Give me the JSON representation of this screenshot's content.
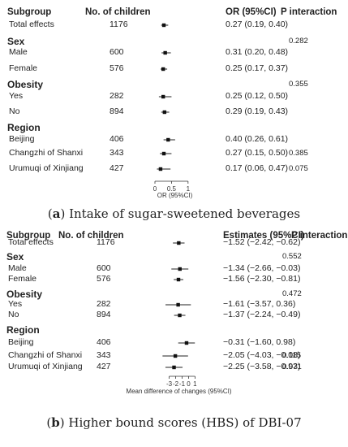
{
  "chart_data": [
    {
      "type": "forest",
      "caption_letter": "a",
      "caption_text": "Intake of sugar-sweetened beverages",
      "headers": {
        "subgroup": "Subgroup",
        "n": "No. of children",
        "est": "OR (95%CI)",
        "p": "P interaction"
      },
      "xlabel": "OR (95%CI)",
      "ticks": [
        {
          "v": 0,
          "label": "0"
        },
        {
          "v": 0.5,
          "label": "0.5"
        },
        {
          "v": 1,
          "label": "1"
        }
      ],
      "xlim": [
        0,
        1.2
      ],
      "rows": [
        {
          "kind": "data",
          "label": "Total effects",
          "n": "1176",
          "est": 0.27,
          "lo": 0.19,
          "hi": 0.4,
          "text": "0.27 (0.19, 0.40)",
          "p": ""
        },
        {
          "kind": "section",
          "label": "Sex",
          "p": "0.282"
        },
        {
          "kind": "data",
          "label": "Male",
          "n": "600",
          "est": 0.31,
          "lo": 0.2,
          "hi": 0.48,
          "text": "0.31 (0.20, 0.48)",
          "p": ""
        },
        {
          "kind": "data",
          "label": "Female",
          "n": "576",
          "est": 0.25,
          "lo": 0.17,
          "hi": 0.37,
          "text": "0.25 (0.17, 0.37)",
          "p": ""
        },
        {
          "kind": "section",
          "label": "Obesity",
          "p": "0.355"
        },
        {
          "kind": "data",
          "label": "Yes",
          "n": "282",
          "est": 0.25,
          "lo": 0.12,
          "hi": 0.5,
          "text": "0.25 (0.12, 0.50)",
          "p": ""
        },
        {
          "kind": "data",
          "label": "No",
          "n": "894",
          "est": 0.29,
          "lo": 0.19,
          "hi": 0.43,
          "text": "0.29 (0.19, 0.43)",
          "p": ""
        },
        {
          "kind": "section",
          "label": "Region",
          "p": ""
        },
        {
          "kind": "data",
          "label": "Beijing",
          "n": "406",
          "est": 0.4,
          "lo": 0.26,
          "hi": 0.61,
          "text": "0.40 (0.26, 0.61)",
          "p": ""
        },
        {
          "kind": "data",
          "label": "Changzhi of Shanxi",
          "n": "343",
          "est": 0.27,
          "lo": 0.15,
          "hi": 0.5,
          "text": "0.27 (0.15, 0.50)",
          "p": "0.385"
        },
        {
          "kind": "data",
          "label": "Urumuqi of Xinjiang",
          "n": "427",
          "est": 0.17,
          "lo": 0.06,
          "hi": 0.47,
          "text": "0.17 (0.06, 0.47)",
          "p": "0.075"
        }
      ]
    },
    {
      "type": "forest",
      "caption_letter": "b",
      "caption_text": "Higher bound scores (HBS) of DBI-07",
      "headers": {
        "subgroup": "Subgroup",
        "n": "No. of children",
        "est": "Estimates (95%CI)",
        "p": "P interaction"
      },
      "xlabel": "Mean difference of changes (95%CI)",
      "ticks": [
        {
          "v": -3,
          "label": "-3"
        },
        {
          "v": -2,
          "label": "-2"
        },
        {
          "v": -1,
          "label": "-1"
        },
        {
          "v": 0,
          "label": "0"
        },
        {
          "v": 1,
          "label": "1"
        }
      ],
      "xlim": [
        -4.2,
        1.2
      ],
      "rows": [
        {
          "kind": "data",
          "label": "Total effects",
          "n": "1176",
          "est": -1.52,
          "lo": -2.42,
          "hi": -0.62,
          "text": "−1.52 (−2.42, −0.62)",
          "p": ""
        },
        {
          "kind": "section",
          "label": "Sex",
          "p": "0.552"
        },
        {
          "kind": "data",
          "label": "Male",
          "n": "600",
          "est": -1.34,
          "lo": -2.66,
          "hi": -0.03,
          "text": "−1.34 (−2.66, −0.03)",
          "p": ""
        },
        {
          "kind": "data",
          "label": "Female",
          "n": "576",
          "est": -1.56,
          "lo": -2.3,
          "hi": -0.81,
          "text": "−1.56 (−2.30, −0.81)",
          "p": ""
        },
        {
          "kind": "section",
          "label": "Obesity",
          "p": "0.472"
        },
        {
          "kind": "data",
          "label": "Yes",
          "n": "282",
          "est": -1.61,
          "lo": -3.57,
          "hi": 0.36,
          "text": "−1.61 (−3.57, 0.36)",
          "p": ""
        },
        {
          "kind": "data",
          "label": "No",
          "n": "894",
          "est": -1.37,
          "lo": -2.24,
          "hi": -0.49,
          "text": "−1.37 (−2.24, −0.49)",
          "p": ""
        },
        {
          "kind": "section",
          "label": "Region",
          "p": ""
        },
        {
          "kind": "data",
          "label": "Beijing",
          "n": "406",
          "est": -0.31,
          "lo": -1.6,
          "hi": 0.98,
          "text": "−0.31 (−1.60, 0.98)",
          "p": ""
        },
        {
          "kind": "data",
          "label": "Changzhi of Shanxi",
          "n": "343",
          "est": -2.05,
          "lo": -4.03,
          "hi": -0.08,
          "text": "−2.05 (−4.03, −0.08)",
          "p": "0.115"
        },
        {
          "kind": "data",
          "label": "Urumuqi of Xinjiang",
          "n": "427",
          "est": -2.25,
          "lo": -3.58,
          "hi": -0.93,
          "text": "−2.25 (−3.58, −0.93)",
          "p": "0.071"
        }
      ]
    }
  ]
}
